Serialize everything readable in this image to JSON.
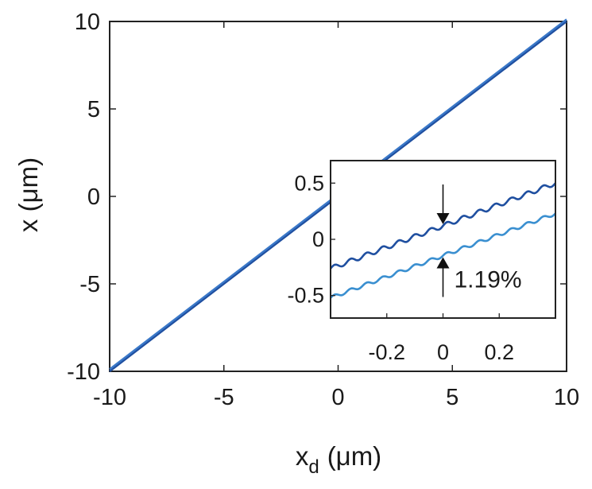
{
  "chart_data": [
    {
      "type": "line",
      "xlabel_main": "x",
      "xlabel_sub": "d",
      "xlabel_unit": "(μm)",
      "ylabel": "x (μm)",
      "xlim": [
        -10,
        10
      ],
      "ylim": [
        -10,
        10
      ],
      "xticks": [
        "-10",
        "-5",
        "0",
        "5",
        "10"
      ],
      "yticks": [
        "10",
        "5",
        "0",
        "-5",
        "-10"
      ],
      "xtick_values": [
        -10,
        -5,
        0,
        5,
        10
      ],
      "ytick_values": [
        10,
        5,
        0,
        -5,
        -10
      ],
      "series": [
        {
          "color": "#1f4fa0",
          "x": [
            -10,
            10
          ],
          "y": [
            -10,
            10
          ]
        },
        {
          "color": "#3a78c8",
          "x": [
            -10,
            10
          ],
          "y": [
            -9.88,
            10.12
          ]
        }
      ]
    },
    {
      "type": "line",
      "inset": true,
      "xlim": [
        -0.4,
        0.4
      ],
      "ylim": [
        -0.7,
        0.7
      ],
      "xticks": [
        "-0.2",
        "0",
        "0.2"
      ],
      "xtick_values": [
        -0.2,
        0,
        0.2
      ],
      "yticks": [
        "0.5",
        "0",
        "-0.5"
      ],
      "ytick_values": [
        0.5,
        0,
        -0.5
      ],
      "series": [
        {
          "color": "#1f4fa0",
          "x": [
            -0.4,
            0.4
          ],
          "y": [
            -0.26,
            0.5
          ],
          "ripple": 0.02
        },
        {
          "color": "#3a8fd0",
          "x": [
            -0.4,
            0.4
          ],
          "y": [
            -0.52,
            0.23
          ],
          "ripple": 0.015
        }
      ],
      "annotation": {
        "label": "1.19%",
        "x": 0.0
      }
    }
  ]
}
